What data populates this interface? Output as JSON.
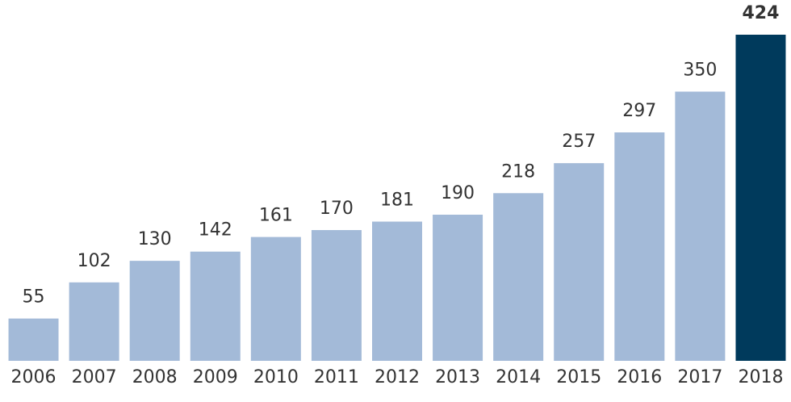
{
  "chart_data": {
    "type": "bar",
    "categories": [
      "2006",
      "2007",
      "2008",
      "2009",
      "2010",
      "2011",
      "2012",
      "2013",
      "2014",
      "2015",
      "2016",
      "2017",
      "2018"
    ],
    "values": [
      55,
      102,
      130,
      142,
      161,
      170,
      181,
      190,
      218,
      257,
      297,
      350,
      424
    ],
    "colors": [
      "#a3bad8",
      "#a3bad8",
      "#a3bad8",
      "#a3bad8",
      "#a3bad8",
      "#a3bad8",
      "#a3bad8",
      "#a3bad8",
      "#a3bad8",
      "#a3bad8",
      "#a3bad8",
      "#a3bad8",
      "#003a5c"
    ],
    "ylim": [
      0,
      424
    ]
  }
}
